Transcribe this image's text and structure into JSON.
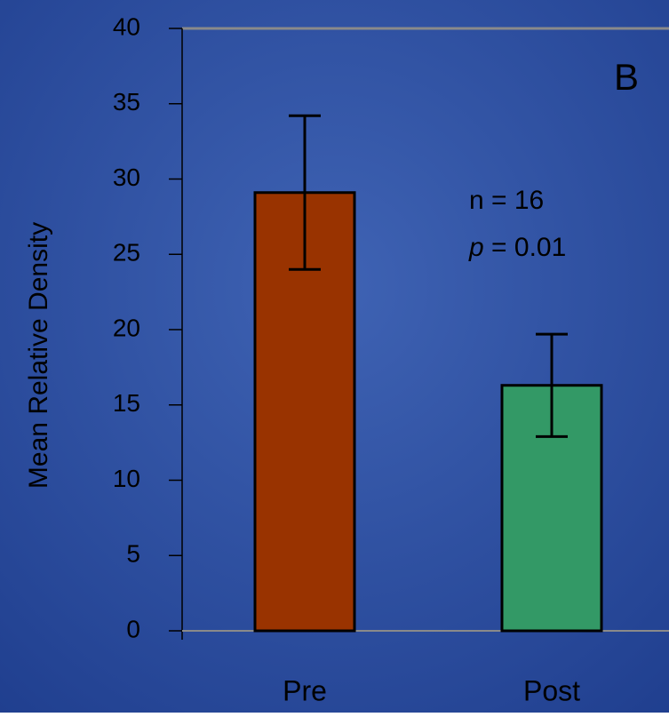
{
  "chart_data": {
    "type": "bar",
    "y_label": "Mean Relative Density",
    "categories": [
      "Pre",
      "Post"
    ],
    "values": [
      29.1,
      16.3
    ],
    "errors": [
      5.1,
      3.4
    ],
    "colors": [
      "#993300",
      "#339966"
    ],
    "ylim": [
      0,
      40
    ],
    "yticks": [
      0,
      5,
      10,
      15,
      20,
      25,
      30,
      35,
      40
    ],
    "panel_label": "B",
    "n_annotation": "n = 16",
    "p_annotation": {
      "symbol": "p",
      "text": "= 0.01"
    }
  }
}
